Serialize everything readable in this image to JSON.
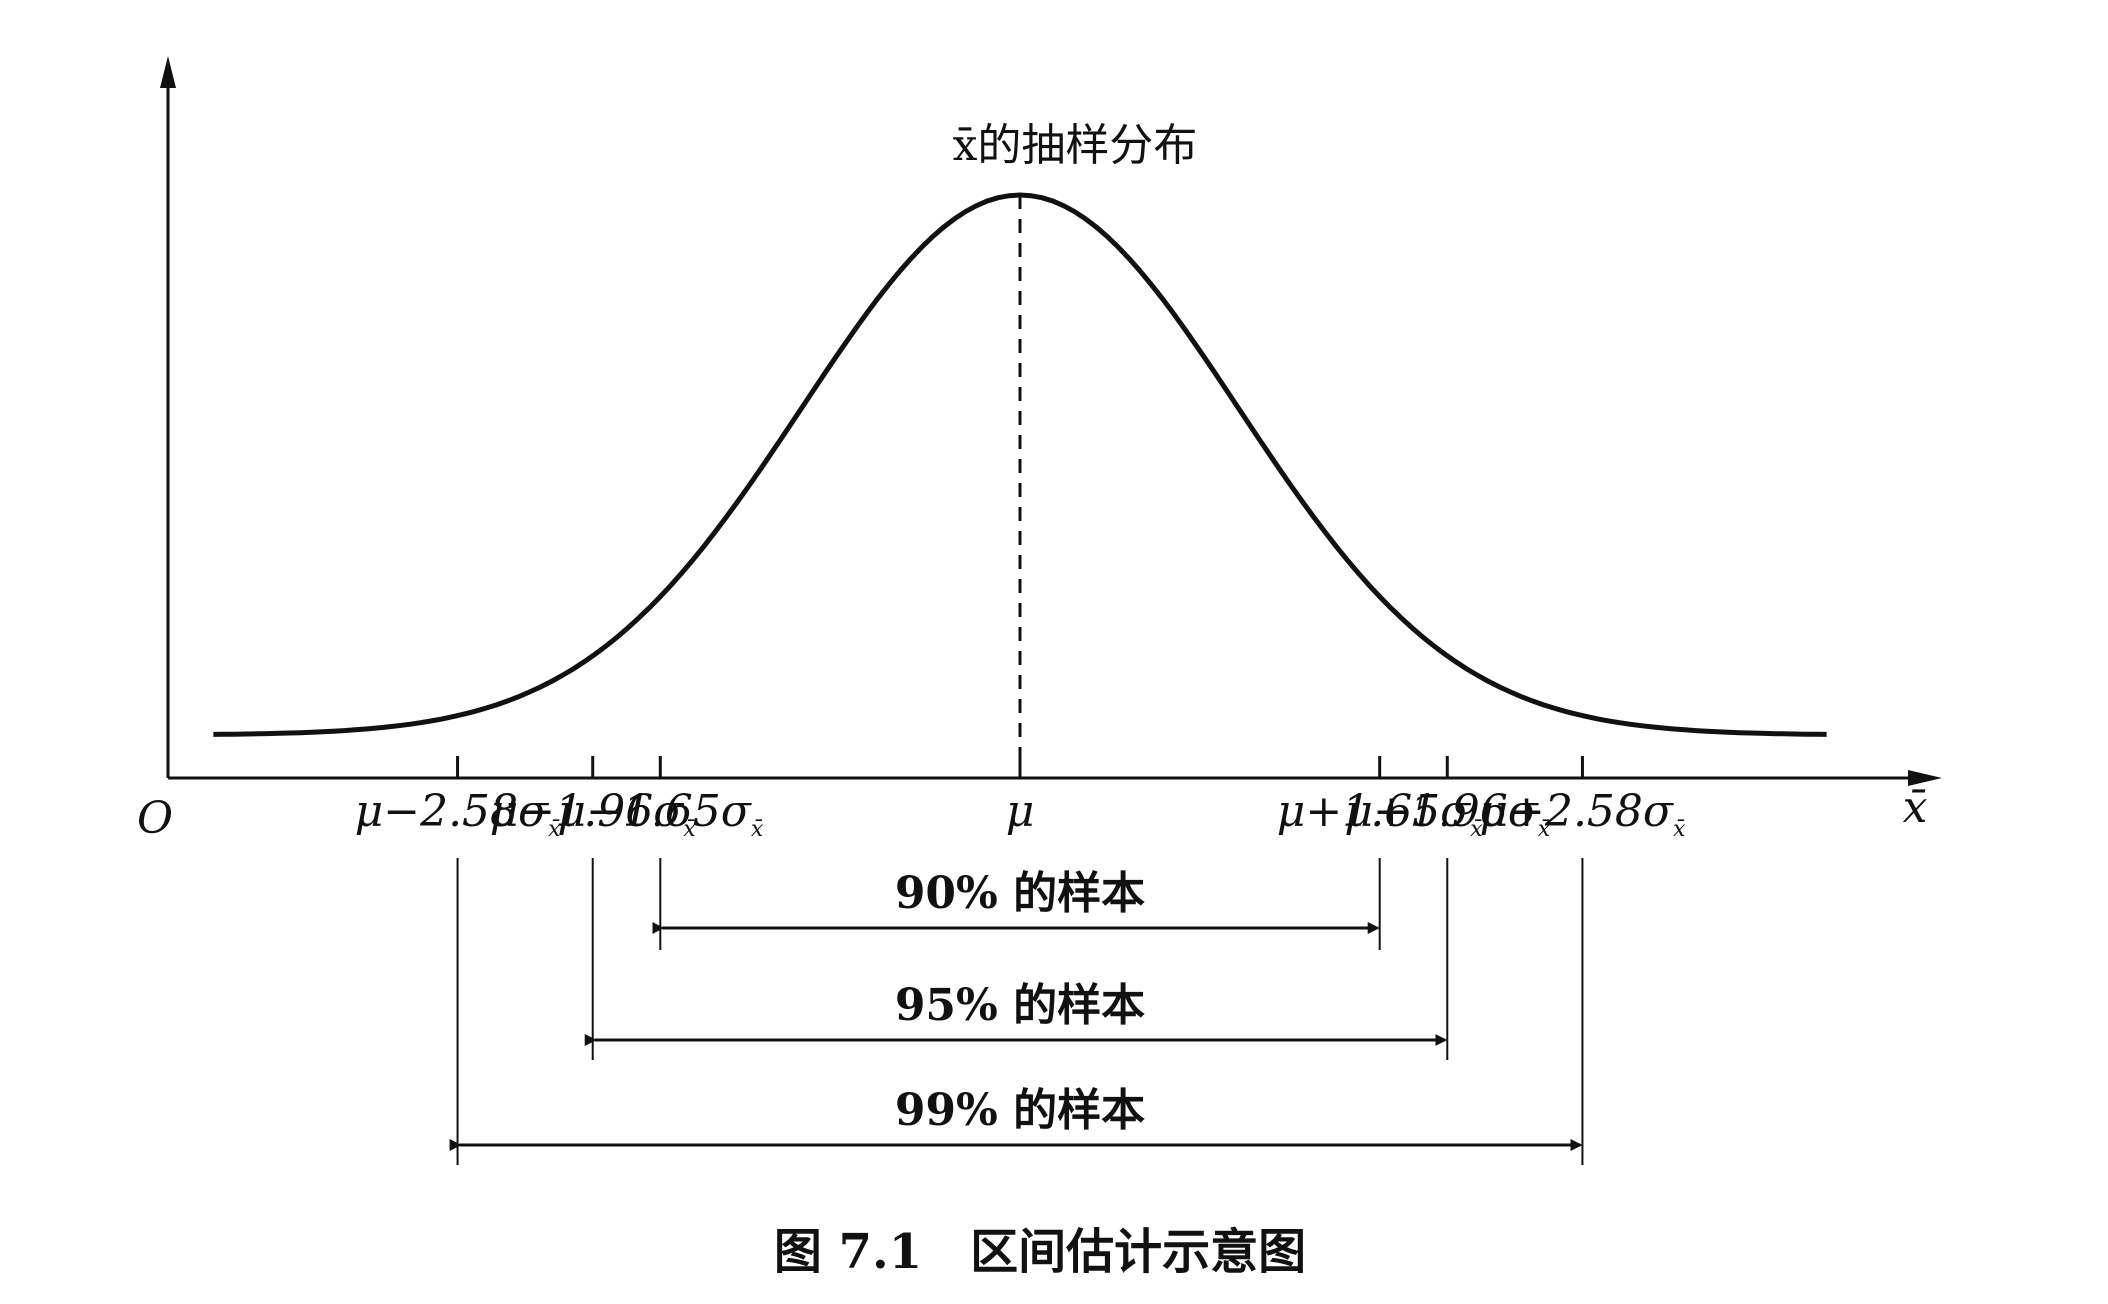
{
  "diagram": {
    "curve_label": "x̄的抽样分布",
    "origin_label": "O",
    "x_axis_label": "x̄",
    "x_ticks": [
      {
        "z": -2.58,
        "label": "μ−2.58σ",
        "sub": "x̄"
      },
      {
        "z": -1.96,
        "label": "μ−1.96σ",
        "sub": "x̄"
      },
      {
        "z": -1.65,
        "label": "μ−1.65σ",
        "sub": "x̄"
      },
      {
        "z": 0,
        "label": "μ",
        "sub": ""
      },
      {
        "z": 1.65,
        "label": "μ+1.65σ",
        "sub": "x̄"
      },
      {
        "z": 1.96,
        "label": "μ+1.96σ",
        "sub": "x̄"
      },
      {
        "z": 2.58,
        "label": "μ+2.58σ",
        "sub": "x̄"
      }
    ],
    "ranges": [
      {
        "z": 1.65,
        "label": "90% 的样本"
      },
      {
        "z": 1.96,
        "label": "95% 的样本"
      },
      {
        "z": 2.58,
        "label": "99% 的样本"
      }
    ],
    "caption": "图 7.1　区间估计示意图",
    "colors": {
      "ink": "#111111",
      "background": "#ffffff"
    }
  }
}
